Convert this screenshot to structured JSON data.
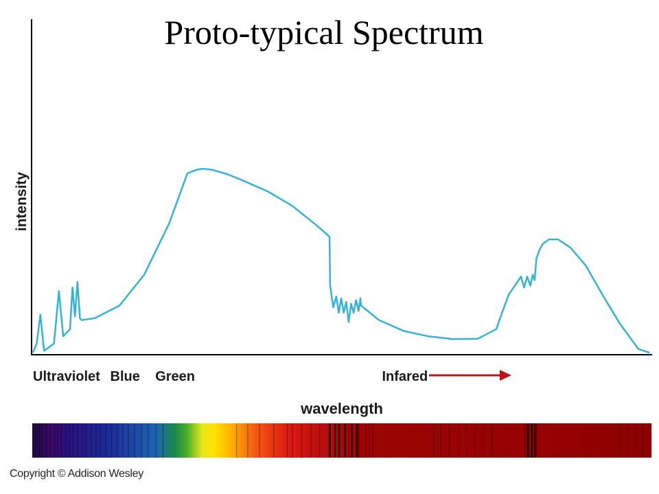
{
  "title": "Proto-typical Spectrum",
  "copyright": "Copyright © Addison Wesley",
  "colors": {
    "curve": "#35b3d6",
    "axis": "#000000",
    "arrow": "#c0141b"
  },
  "chart_data": {
    "type": "line",
    "title": "Proto-typical Spectrum",
    "xlabel": "wavelength",
    "ylabel": "intensity",
    "xlim": [
      0,
      100
    ],
    "ylim": [
      0,
      100
    ],
    "grid": false,
    "band_labels": [
      {
        "text": "Ultraviolet",
        "x": 0
      },
      {
        "text": "Blue",
        "x": 12.5
      },
      {
        "text": "Green",
        "x": 19.8
      },
      {
        "text": "Infared",
        "x": 56.5
      }
    ],
    "series": [
      {
        "x": [
          0,
          0.6,
          1.2,
          1.8,
          2.6,
          3.4,
          4.2,
          4.9,
          6.0,
          6.4,
          6.8,
          7.2,
          7.6,
          7.9,
          10,
          14,
          18,
          22,
          25,
          26.5,
          27.5,
          29,
          31.5,
          34,
          38,
          42,
          46,
          48,
          48.1,
          48.6,
          49.1,
          49.5,
          49.9,
          50.3,
          50.7,
          51.1,
          51.5,
          51.9,
          52.3,
          52.7,
          53.0,
          53.1,
          56,
          60,
          64,
          68,
          72,
          75,
          75.5,
          77,
          79,
          79.5,
          80,
          80.5,
          80.9,
          81.2,
          81.5,
          81.9,
          82.5,
          83.5,
          85,
          87,
          89.5,
          92,
          95,
          98,
          99.8
        ],
        "y": [
          0,
          5,
          21,
          1,
          3,
          5,
          34,
          9,
          13,
          36,
          20,
          39,
          19,
          18,
          19,
          26,
          43,
          71,
          99,
          101,
          101.5,
          101,
          98.5,
          95,
          89,
          81,
          70,
          64,
          37,
          25,
          31,
          22,
          30,
          22,
          28,
          17,
          27,
          22,
          29,
          23,
          30,
          26,
          18,
          12,
          9,
          7.5,
          7.7,
          13,
          18,
          32,
          42,
          36,
          42,
          37,
          43,
          40,
          52,
          56,
          60,
          62.5,
          62.5,
          58,
          48,
          33,
          16,
          2,
          0
        ]
      }
    ]
  },
  "spectrum_bar": {
    "stops": [
      {
        "offset": 0,
        "color": "#1a0a3e"
      },
      {
        "offset": 3,
        "color": "#3b0a66"
      },
      {
        "offset": 6,
        "color": "#2a1280"
      },
      {
        "offset": 12,
        "color": "#1c2a9a"
      },
      {
        "offset": 20,
        "color": "#1e64b0"
      },
      {
        "offset": 23,
        "color": "#1a8a4a"
      },
      {
        "offset": 25,
        "color": "#4caf2a"
      },
      {
        "offset": 27.5,
        "color": "#e8e81a"
      },
      {
        "offset": 29.5,
        "color": "#ffe100"
      },
      {
        "offset": 32,
        "color": "#ffb400"
      },
      {
        "offset": 36,
        "color": "#f45a12"
      },
      {
        "offset": 41,
        "color": "#de1c12"
      },
      {
        "offset": 47,
        "color": "#b80e0e"
      },
      {
        "offset": 53,
        "color": "#9e0404"
      },
      {
        "offset": 100,
        "color": "#8f0000"
      }
    ],
    "lines": [
      1.2,
      1.6,
      2.3,
      2.9,
      3.6,
      4.1,
      4.7,
      5.4,
      6.0,
      6.6,
      7.3,
      8.1,
      8.7,
      9.5,
      10.3,
      11.0,
      11.9,
      12.8,
      13.7,
      14.6,
      15.5,
      16.5,
      17.6,
      18.7,
      20.0,
      21.1,
      33.0,
      34.8,
      36.7,
      39.0,
      41.2,
      42.0,
      43.5,
      45.0,
      46.4,
      47.9,
      49.3,
      50.6,
      51.1,
      52.3,
      52.8,
      53.9,
      54.4,
      55.0,
      64.9,
      66.0,
      67.4,
      68.8,
      70.1,
      71.5,
      72.8,
      74.2,
      79.6,
      80.2,
      80.8,
      81.4,
      95.0,
      96.2,
      97.4,
      98.6
    ],
    "dark_lines": [
      48.1,
      48.9,
      49.6,
      50.5,
      51.6,
      52.5,
      80.0,
      80.7,
      81.2
    ]
  }
}
